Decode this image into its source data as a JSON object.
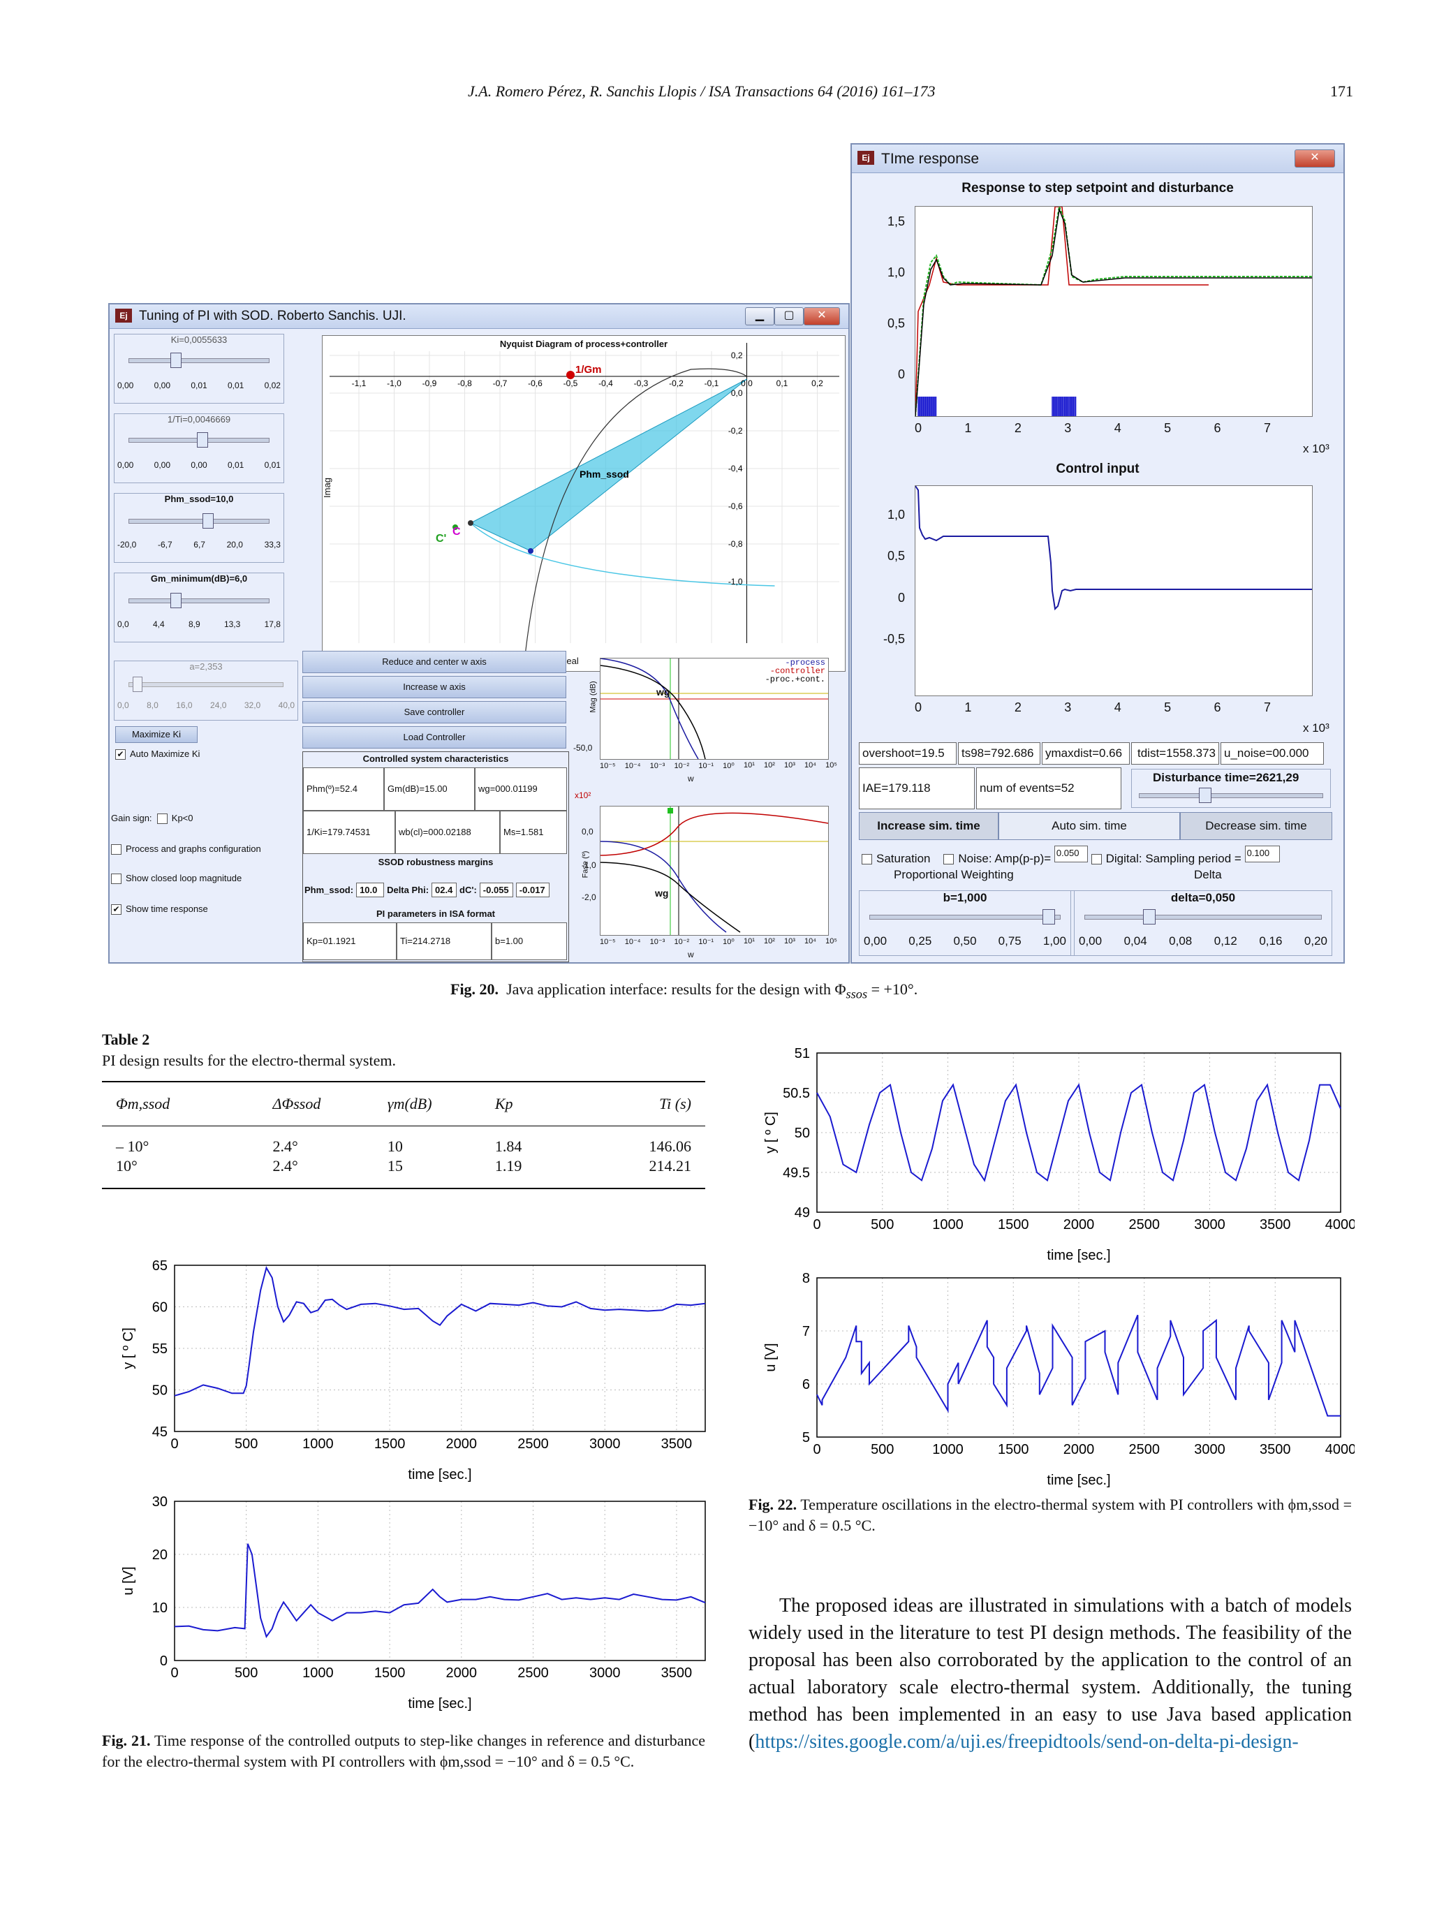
{
  "header": {
    "running": "J.A. Romero Pérez, R. Sanchis Llopis / ISA Transactions 64 (2016) 161–173",
    "page": "171"
  },
  "tuning_window": {
    "title": "Tuning of PI with SOD. Roberto Sanchis. UJI.",
    "icon": "Ej",
    "sliders": [
      {
        "label": "Ki=0,0055633",
        "ticks": [
          "0,00",
          "0,00",
          "0,01",
          "0,01",
          "0,02"
        ]
      },
      {
        "label": "1/Ti=0,0046669",
        "ticks": [
          "0,00",
          "0,00",
          "0,00",
          "0,01",
          "0,01"
        ]
      },
      {
        "label": "Phm_ssod=10,0",
        "ticks": [
          "-20,0",
          "-6,7",
          "6,7",
          "20,0",
          "33,3"
        ]
      },
      {
        "label": "Gm_minimum(dB)=6,0",
        "ticks": [
          "0,0",
          "4,4",
          "8,9",
          "13,3",
          "17,8"
        ]
      },
      {
        "label": "a=2,353",
        "ticks": [
          "0,0",
          "8,0",
          "16,0",
          "24,0",
          "32,0",
          "40,0"
        ]
      }
    ],
    "maximize_btn": "Maximize Ki",
    "auto_max": "Auto Maximize Ki",
    "gain_sign": "Gain sign:",
    "kp_neg": "Kp<0",
    "options": [
      "Process and graphs configuration",
      "Show closed loop magnitude",
      "Show time response"
    ],
    "nyquist": {
      "title": "Nyquist Diagram of process+controller",
      "xlabel": "Real",
      "ylabel": "Imag",
      "xticks": [
        "-1,1",
        "-1,0",
        "-0,9",
        "-0,8",
        "-0,7",
        "-0,6",
        "-0,5",
        "-0,4",
        "-0,3",
        "-0,2",
        "-0,1",
        "0,0",
        "0,1",
        "0,2"
      ],
      "yticks": [
        "0,2",
        "0,0",
        "-0,2",
        "-0,4",
        "-0,6",
        "-0,8",
        "-1,0"
      ],
      "label_gm": "1/Gm",
      "label_phm": "Phm_ssod",
      "label_c": "C",
      "label_cp": "C'"
    },
    "buttons": [
      "Reduce and center w axis",
      "Increase w axis",
      "Save controller",
      "Load Controller"
    ],
    "char_title": "Controlled system characteristics",
    "char_fields": [
      "Phm(º)=52.4",
      "Gm(dB)=15.00",
      "wg=000.01199",
      "1/Ki=179.74531",
      "wb(cl)=000.02188",
      "Ms=1.581"
    ],
    "ssod_title": "SSOD robustness margins",
    "ssod_fields": [
      "Phm_ssod:",
      "10.0",
      "Delta Phi:",
      "02.4",
      "dC':",
      "-0.055",
      "-0.017"
    ],
    "isa_title": "PI parameters in ISA format",
    "isa_fields": [
      "Kp=01.1921",
      "Ti=214.2718",
      "b=1.00"
    ],
    "bode": {
      "mag_label": "Mag (dB)",
      "phase_label": "Fase (º)",
      "w": "w",
      "wg": "wg",
      "x102": "x10²",
      "legend": [
        "-process",
        "-controller",
        "-proc.+cont."
      ],
      "mag_tick": "-50,0",
      "phase_ticks": [
        "0,0",
        "-1,0",
        "-2,0"
      ],
      "xticks": [
        "10⁻⁵",
        "10⁻⁴",
        "10⁻³",
        "10⁻²",
        "10⁻¹",
        "10⁰",
        "10¹",
        "10²",
        "10³",
        "10⁴",
        "10⁵"
      ]
    }
  },
  "time_window": {
    "title": "TIme response",
    "icon": "Ej",
    "plot1": {
      "title": "Response to step setpoint and disturbance",
      "yticks": [
        "1,5",
        "1,0",
        "0,5",
        "0"
      ],
      "xticks": [
        "0",
        "1",
        "2",
        "3",
        "4",
        "5",
        "6",
        "7"
      ],
      "mult": "x 10³"
    },
    "plot2": {
      "title": "Control input",
      "yticks": [
        "1,0",
        "0,5",
        "0",
        "-0,5"
      ],
      "xticks": [
        "0",
        "1",
        "2",
        "3",
        "4",
        "5",
        "6",
        "7"
      ],
      "mult": "x 10³"
    },
    "fields1": [
      "overshoot=19.5",
      "ts98=792.686",
      "ymaxdist=0.66",
      "tdist=1558.373",
      "u_noise=00.000"
    ],
    "fields2": [
      "IAE=179.118",
      "num of events=52"
    ],
    "dist_label": "Disturbance time=2621,29",
    "buttons": [
      "Increase sim. time",
      "Auto sim. time",
      "Decrease sim. time"
    ],
    "saturation": "Saturation",
    "noise": "Noise: Amp(p-p)=",
    "noise_val": "0.050",
    "digital": "Digital",
    "sampling": ": Sampling period =",
    "sampling_val": "0.100",
    "pw_title": "Proportional Weighting",
    "pw_val": "b=1,000",
    "pw_ticks": [
      "0,00",
      "0,25",
      "0,50",
      "0,75",
      "1,00"
    ],
    "delta_title": "Delta",
    "delta_val": "delta=0,050",
    "delta_ticks": [
      "0,00",
      "0,04",
      "0,08",
      "0,12",
      "0,16",
      "0,20"
    ]
  },
  "fig20": {
    "label": "Fig. 20.",
    "text": "Java application interface: results for the design with Φ",
    "sub": "ssos",
    "tail": " = +10°."
  },
  "table2": {
    "label": "Table 2",
    "caption": "PI design results for the electro-thermal system.",
    "headers": [
      "Φm,ssod",
      "ΔΦssod",
      "γm(dB)",
      "Kp",
      "Ti (s)"
    ],
    "rows": [
      [
        "– 10°",
        "2.4°",
        "10",
        "1.84",
        "146.06"
      ],
      [
        "10°",
        "2.4°",
        "15",
        "1.19",
        "214.21"
      ]
    ]
  },
  "fig21": {
    "label": "Fig. 21.",
    "text": "Time response of the controlled outputs to step-like changes in reference and disturbance for the electro-thermal system with PI controllers with ϕm,ssod = −10° and δ = 0.5 °C."
  },
  "fig22": {
    "label": "Fig. 22.",
    "text": "Temperature oscillations in the electro-thermal system with PI controllers with ϕm,ssod = −10° and δ = 0.5 °C."
  },
  "body": {
    "text": "The proposed ideas are illustrated in simulations with a batch of models widely used in the literature to test PI design methods. The feasibility of the proposal has been also corroborated by the application to the control of an actual laboratory scale electro-thermal system. Additionally, the tuning method has been implemented in an easy to use Java based application (",
    "link": "https://sites.google.com/a/uji.es/freepidtools/send-on-delta-pi-design-"
  },
  "chart_data": [
    {
      "type": "line",
      "title": "",
      "xlabel": "time [sec.]",
      "ylabel": "y [ º C]",
      "xlim": [
        0,
        3700
      ],
      "ylim": [
        45,
        65
      ],
      "xticks": [
        0,
        500,
        1000,
        1500,
        2000,
        2500,
        3000,
        3500
      ],
      "yticks": [
        45,
        50,
        55,
        60,
        65
      ],
      "series": [
        {
          "x": [
            0,
            100,
            200,
            300,
            400,
            480,
            500,
            520,
            550,
            600,
            640,
            680,
            720,
            760,
            800,
            850,
            900,
            950,
            1000,
            1050,
            1100,
            1150,
            1200,
            1300,
            1400,
            1500,
            1600,
            1700,
            1800,
            1850,
            1900,
            1950,
            2000,
            2100,
            2200,
            2300,
            2400,
            2500,
            2600,
            2700,
            2800,
            2900,
            3000,
            3100,
            3200,
            3300,
            3400,
            3500,
            3600,
            3700
          ],
          "y": [
            49.3,
            49.8,
            50.6,
            50.2,
            49.6,
            49.6,
            50.5,
            53,
            57,
            62,
            64.7,
            63.5,
            60,
            58.2,
            59,
            60.6,
            60.4,
            59.3,
            59.6,
            60.8,
            60.9,
            60.2,
            59.7,
            60.3,
            60.4,
            60.1,
            59.7,
            59.8,
            58.3,
            57.8,
            58.9,
            59.6,
            60.3,
            59.5,
            60.4,
            60.3,
            60.2,
            60.5,
            60.1,
            60,
            60.6,
            59.8,
            59.6,
            59.7,
            59.6,
            59.5,
            59.6,
            60.3,
            60.2,
            60.4
          ]
        }
      ]
    },
    {
      "type": "line",
      "title": "",
      "xlabel": "time [sec.]",
      "ylabel": "u [V]",
      "xlim": [
        0,
        3700
      ],
      "ylim": [
        0,
        30
      ],
      "xticks": [
        0,
        500,
        1000,
        1500,
        2000,
        2500,
        3000,
        3500
      ],
      "yticks": [
        0,
        10,
        20,
        30
      ],
      "series": [
        {
          "x": [
            0,
            100,
            200,
            300,
            420,
            490,
            510,
            540,
            570,
            600,
            640,
            680,
            720,
            760,
            800,
            850,
            900,
            950,
            1000,
            1100,
            1200,
            1300,
            1400,
            1500,
            1600,
            1700,
            1800,
            1850,
            1900,
            2000,
            2100,
            2200,
            2300,
            2400,
            2500,
            2600,
            2700,
            2800,
            2900,
            3000,
            3100,
            3200,
            3300,
            3400,
            3500,
            3600,
            3700
          ],
          "y": [
            6.4,
            6.5,
            5.8,
            5.6,
            6.2,
            6,
            22,
            20,
            14,
            8,
            4.5,
            6,
            9,
            11,
            9.5,
            7.5,
            9,
            10.5,
            9,
            7.5,
            9,
            9,
            9.3,
            9,
            10.5,
            10.8,
            13.4,
            12,
            11,
            11.5,
            11.5,
            12,
            11.5,
            11.4,
            12,
            12.6,
            11.5,
            11.8,
            11.5,
            11.8,
            11.5,
            12.5,
            12,
            11.5,
            11.4,
            12,
            10.9
          ]
        }
      ]
    },
    {
      "type": "line",
      "title": "",
      "xlabel": "time [sec.]",
      "ylabel": "y [ º C]",
      "xlim": [
        0,
        4000
      ],
      "ylim": [
        49,
        51
      ],
      "xticks": [
        0,
        500,
        1000,
        1500,
        2000,
        2500,
        3000,
        3500,
        4000
      ],
      "yticks": [
        49,
        49.5,
        50,
        50.5,
        51
      ],
      "series": [
        {
          "x": [
            0,
            100,
            200,
            300,
            400,
            480,
            560,
            640,
            720,
            800,
            880,
            960,
            1040,
            1120,
            1200,
            1280,
            1360,
            1440,
            1520,
            1600,
            1680,
            1760,
            1840,
            1920,
            2000,
            2080,
            2160,
            2240,
            2320,
            2400,
            2480,
            2560,
            2640,
            2720,
            2800,
            2880,
            2960,
            3040,
            3120,
            3200,
            3280,
            3360,
            3440,
            3520,
            3600,
            3680,
            3760,
            3840,
            3920,
            4000
          ],
          "y": [
            50.5,
            50.2,
            49.6,
            49.5,
            50.1,
            50.5,
            50.6,
            50.0,
            49.5,
            49.4,
            49.8,
            50.4,
            50.6,
            50.1,
            49.6,
            49.4,
            49.9,
            50.4,
            50.6,
            50.0,
            49.5,
            49.4,
            49.9,
            50.4,
            50.6,
            50.0,
            49.5,
            49.4,
            50.0,
            50.5,
            50.6,
            50.0,
            49.5,
            49.4,
            49.9,
            50.5,
            50.6,
            50.0,
            49.5,
            49.4,
            49.8,
            50.4,
            50.6,
            50.0,
            49.5,
            49.4,
            49.9,
            50.6,
            50.6,
            50.3
          ]
        }
      ]
    },
    {
      "type": "line",
      "title": "",
      "xlabel": "time [sec.]",
      "ylabel": "u [V]",
      "xlim": [
        0,
        4000
      ],
      "ylim": [
        5,
        8
      ],
      "xticks": [
        0,
        500,
        1000,
        1500,
        2000,
        2500,
        3000,
        3500,
        4000
      ],
      "yticks": [
        5,
        6,
        7,
        8
      ],
      "series": [
        {
          "x": [
            0,
            40,
            40,
            220,
            300,
            300,
            340,
            340,
            400,
            400,
            700,
            700,
            760,
            760,
            1000,
            1000,
            1080,
            1080,
            1300,
            1300,
            1350,
            1350,
            1450,
            1450,
            1600,
            1600,
            1700,
            1700,
            1800,
            1800,
            1950,
            1950,
            2050,
            2050,
            2200,
            2200,
            2300,
            2300,
            2450,
            2450,
            2600,
            2600,
            2700,
            2700,
            2800,
            2800,
            2950,
            2950,
            3050,
            3050,
            3200,
            3200,
            3300,
            3300,
            3450,
            3450,
            3550,
            3550,
            3650,
            3650,
            3900,
            3900,
            4000
          ],
          "y": [
            5.8,
            5.6,
            5.7,
            6.5,
            7.1,
            6.8,
            6.8,
            6.2,
            6.4,
            6.0,
            6.8,
            7.1,
            6.7,
            6.5,
            5.5,
            6.0,
            6.4,
            6.0,
            7.2,
            6.7,
            6.5,
            6.0,
            5.6,
            6.3,
            7.0,
            7.1,
            6.2,
            5.8,
            6.3,
            7.1,
            6.5,
            5.6,
            6.1,
            6.8,
            7.0,
            6.6,
            5.8,
            6.4,
            7.3,
            6.6,
            5.7,
            6.3,
            6.9,
            7.2,
            6.5,
            5.8,
            6.3,
            7.0,
            7.2,
            6.5,
            5.7,
            6.3,
            7.1,
            7.0,
            6.4,
            5.7,
            6.4,
            7.2,
            6.6,
            7.2,
            5.4,
            5.4,
            5.4
          ]
        }
      ]
    }
  ]
}
